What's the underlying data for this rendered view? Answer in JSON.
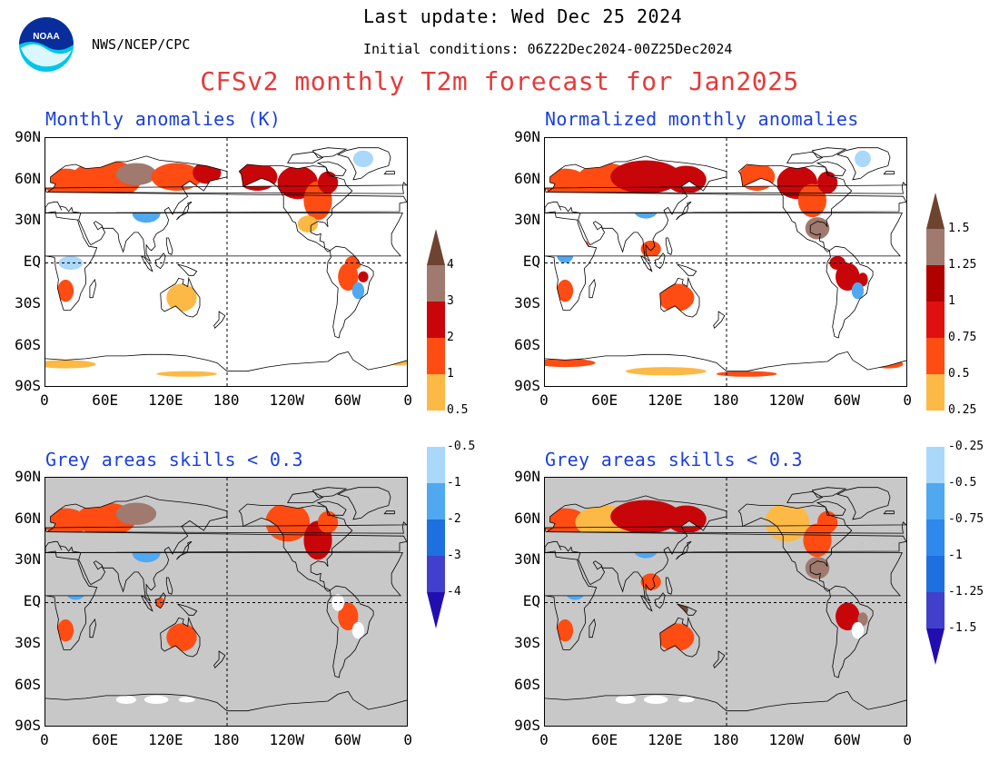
{
  "header": {
    "agency": "NWS/NCEP/CPC",
    "last_update": "Last update: Wed Dec 25 2024",
    "initial_conditions": "Initial conditions: 06Z22Dec2024-00Z25Dec2024",
    "title": "CFSv2 monthly T2m forecast for Jan2025",
    "logo_text": "NOAA"
  },
  "panels": [
    {
      "title": "Monthly anomalies (K)",
      "background": "#ffffff"
    },
    {
      "title": "Normalized monthly anomalies",
      "background": "#ffffff"
    },
    {
      "title": "Grey areas skills < 0.3",
      "background": "#c8c8c8"
    },
    {
      "title": "Grey areas skills < 0.3",
      "background": "#c8c8c8"
    }
  ],
  "axes": {
    "lat_labels": [
      "90N",
      "60N",
      "30N",
      "EQ",
      "30S",
      "60S",
      "90S"
    ],
    "lon_labels": [
      "0",
      "60E",
      "120E",
      "180",
      "120W",
      "60W",
      "0"
    ]
  },
  "colorbar_left": {
    "labels": [
      "4",
      "3",
      "2",
      "1",
      "0.5",
      "-0.5",
      "-1",
      "-2",
      "-3",
      "-4"
    ]
  },
  "colorbar_right": {
    "labels": [
      "1.5",
      "1.25",
      "1",
      "0.75",
      "0.5",
      "0.25",
      "-0.25",
      "-0.5",
      "-0.75",
      "-1",
      "-1.25",
      "-1.5"
    ]
  },
  "palette": {
    "warm": [
      "#fdb945",
      "#fe4c13",
      "#c8060a",
      "#a07a6f",
      "#6e4430"
    ],
    "cool": [
      "#a9d8fa",
      "#4fa8f0",
      "#1e6fe0",
      "#4040cc",
      "#220eb0"
    ],
    "title_red": "#e63a3a",
    "title_blue": "#1a3fe0",
    "skill_grey": "#c8c8c8"
  }
}
